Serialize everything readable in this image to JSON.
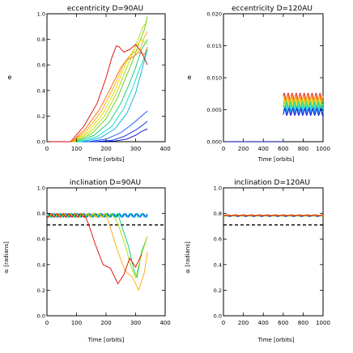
{
  "chart_data": [
    {
      "type": "line",
      "title": "eccentricity D=90AU",
      "xlabel": "Time [orbits]",
      "ylabel": "e",
      "xlim": [
        0,
        400
      ],
      "ylim": [
        0,
        1.0
      ],
      "xticks": [
        "0",
        "100",
        "200",
        "300",
        "400"
      ],
      "yticks": [
        "0.0",
        "0.2",
        "0.4",
        "0.6",
        "0.8",
        "1.0"
      ],
      "series": [
        {
          "color": "#0000cc",
          "x": [
            180,
            230,
            270,
            300,
            320,
            340
          ],
          "y": [
            0,
            0.005,
            0.02,
            0.05,
            0.08,
            0.1
          ]
        },
        {
          "color": "#0022ee",
          "x": [
            160,
            220,
            260,
            300,
            330,
            340
          ],
          "y": [
            0,
            0.01,
            0.04,
            0.09,
            0.14,
            0.16
          ]
        },
        {
          "color": "#1155ff",
          "x": [
            140,
            200,
            250,
            290,
            320,
            340
          ],
          "y": [
            0,
            0.02,
            0.07,
            0.14,
            0.2,
            0.24
          ]
        },
        {
          "color": "#00aadd",
          "x": [
            120,
            180,
            230,
            270,
            300,
            320,
            340
          ],
          "y": [
            0,
            0.03,
            0.1,
            0.22,
            0.38,
            0.55,
            0.72
          ]
        },
        {
          "color": "#00ddcc",
          "x": [
            110,
            170,
            220,
            260,
            290,
            310,
            330,
            340
          ],
          "y": [
            0,
            0.04,
            0.12,
            0.26,
            0.42,
            0.55,
            0.66,
            0.72
          ]
        },
        {
          "color": "#00cc66",
          "x": [
            100,
            160,
            210,
            250,
            280,
            300,
            320,
            340
          ],
          "y": [
            0,
            0.05,
            0.15,
            0.3,
            0.46,
            0.58,
            0.72,
            0.8
          ]
        },
        {
          "color": "#66cc00",
          "x": [
            95,
            150,
            200,
            240,
            270,
            290,
            310,
            330,
            340
          ],
          "y": [
            0,
            0.06,
            0.18,
            0.35,
            0.52,
            0.63,
            0.76,
            0.88,
            0.98
          ]
        },
        {
          "color": "#aadd00",
          "x": [
            90,
            145,
            195,
            235,
            265,
            285,
            305,
            325,
            340
          ],
          "y": [
            0,
            0.07,
            0.2,
            0.38,
            0.55,
            0.66,
            0.78,
            0.9,
            0.94
          ]
        },
        {
          "color": "#dddd00",
          "x": [
            88,
            140,
            190,
            230,
            260,
            280,
            300,
            320,
            340
          ],
          "y": [
            0,
            0.08,
            0.22,
            0.4,
            0.57,
            0.67,
            0.74,
            0.8,
            0.76
          ]
        },
        {
          "color": "#ffaa00",
          "x": [
            86,
            135,
            185,
            225,
            255,
            275,
            295,
            315,
            330,
            340
          ],
          "y": [
            0,
            0.09,
            0.24,
            0.42,
            0.58,
            0.66,
            0.7,
            0.72,
            0.82,
            0.86
          ]
        },
        {
          "color": "#ff6600",
          "x": [
            84,
            130,
            180,
            220,
            250,
            270,
            290,
            310,
            330,
            340
          ],
          "y": [
            0,
            0.1,
            0.26,
            0.44,
            0.58,
            0.64,
            0.66,
            0.7,
            0.68,
            0.74
          ]
        },
        {
          "color": "#dd0000",
          "x": [
            80,
            125,
            170,
            200,
            220,
            235,
            245,
            260,
            280,
            300,
            320,
            340
          ],
          "y": [
            0,
            0.12,
            0.3,
            0.5,
            0.66,
            0.75,
            0.74,
            0.7,
            0.72,
            0.76,
            0.7,
            0.6
          ]
        }
      ]
    },
    {
      "type": "line",
      "title": "eccentricity D=120AU",
      "xlabel": "Time [orbits]",
      "ylabel": "e",
      "xlim": [
        0,
        1000
      ],
      "ylim": [
        0,
        0.02
      ],
      "xticks": [
        "0",
        "200",
        "400",
        "600",
        "800",
        "1000"
      ],
      "yticks": [
        "0.000",
        "0.005",
        "0.010",
        "0.015",
        "0.020"
      ],
      "series": [
        {
          "color": "#dd0000",
          "base": 0.0071,
          "amp": 0.0005
        },
        {
          "color": "#ff6600",
          "base": 0.0068,
          "amp": 0.0005
        },
        {
          "color": "#ffaa00",
          "base": 0.0065,
          "amp": 0.0005
        },
        {
          "color": "#dddd00",
          "base": 0.0062,
          "amp": 0.0005
        },
        {
          "color": "#66cc00",
          "base": 0.0059,
          "amp": 0.0005
        },
        {
          "color": "#00cc66",
          "base": 0.0056,
          "amp": 0.0005
        },
        {
          "color": "#00ddcc",
          "base": 0.0053,
          "amp": 0.0005
        },
        {
          "color": "#00aadd",
          "base": 0.005,
          "amp": 0.0005
        },
        {
          "color": "#1155ff",
          "base": 0.0048,
          "amp": 0.0005
        },
        {
          "color": "#0000cc",
          "base": 0.0046,
          "amp": 0.0005
        }
      ],
      "x_start": 600,
      "x_end": 1000
    },
    {
      "type": "line",
      "title": "inclination D=90AU",
      "xlabel": "Time [orbits]",
      "ylabel": "αᵢ [radians]",
      "xlim": [
        0,
        400
      ],
      "ylim": [
        0,
        1.0
      ],
      "xticks": [
        "0",
        "100",
        "200",
        "300",
        "400"
      ],
      "yticks": [
        "0.0",
        "0.2",
        "0.4",
        "0.6",
        "0.8",
        "1.0"
      ],
      "reference_line": 0.71,
      "series": [
        {
          "color": "#0000cc",
          "base": 0.785,
          "amp": 0.015,
          "x_end": 340
        },
        {
          "color": "#1155ff",
          "base": 0.785,
          "amp": 0.015,
          "x_end": 340
        },
        {
          "color": "#00aadd",
          "base": 0.785,
          "amp": 0.015,
          "x_end": 340
        },
        {
          "color": "#00ddcc",
          "base": 0.785,
          "amp": 0.015,
          "x_end": 340
        },
        {
          "color": "#00cc66",
          "base": 0.785,
          "amp": 0.015,
          "x_end": 240,
          "tail_x": [
            250,
            275,
            295,
            305,
            320,
            340
          ],
          "tail_y": [
            0.72,
            0.55,
            0.35,
            0.3,
            0.5,
            0.62
          ]
        },
        {
          "color": "#aadd00",
          "base": 0.785,
          "amp": 0.015,
          "x_end": 230,
          "tail_x": [
            240,
            265,
            285,
            300,
            320,
            340
          ],
          "tail_y": [
            0.72,
            0.55,
            0.38,
            0.3,
            0.48,
            0.62
          ]
        },
        {
          "color": "#ffaa00",
          "base": 0.785,
          "amp": 0.015,
          "x_end": 200,
          "tail_x": [
            210,
            240,
            265,
            290,
            310,
            330,
            340
          ],
          "tail_y": [
            0.72,
            0.5,
            0.35,
            0.3,
            0.2,
            0.34,
            0.5
          ]
        },
        {
          "color": "#dd0000",
          "base": 0.785,
          "amp": 0.015,
          "x_end": 130,
          "tail_x": [
            140,
            165,
            190,
            215,
            240,
            260,
            280,
            300,
            320
          ],
          "tail_y": [
            0.72,
            0.55,
            0.4,
            0.37,
            0.25,
            0.32,
            0.45,
            0.38,
            0.48
          ]
        }
      ]
    },
    {
      "type": "line",
      "title": "inclination D=120AU",
      "xlabel": "Time [orbits]",
      "ylabel": "αᵢ [radians]",
      "xlim": [
        0,
        1000
      ],
      "ylim": [
        0,
        1.0
      ],
      "xticks": [
        "0",
        "200",
        "400",
        "600",
        "800",
        "1000"
      ],
      "yticks": [
        "0.0",
        "0.2",
        "0.4",
        "0.6",
        "0.8",
        "1.0"
      ],
      "reference_line": 0.71,
      "series": [
        {
          "color": "#0000cc",
          "base": 0.78,
          "amp": 0.004
        },
        {
          "color": "#00aadd",
          "base": 0.781,
          "amp": 0.004
        },
        {
          "color": "#00cc66",
          "base": 0.782,
          "amp": 0.004
        },
        {
          "color": "#dddd00",
          "base": 0.783,
          "amp": 0.004
        },
        {
          "color": "#ff6600",
          "base": 0.784,
          "amp": 0.004
        },
        {
          "color": "#dd0000",
          "base": 0.785,
          "amp": 0.004
        }
      ],
      "x_start": 600,
      "x_end": 1000
    }
  ]
}
